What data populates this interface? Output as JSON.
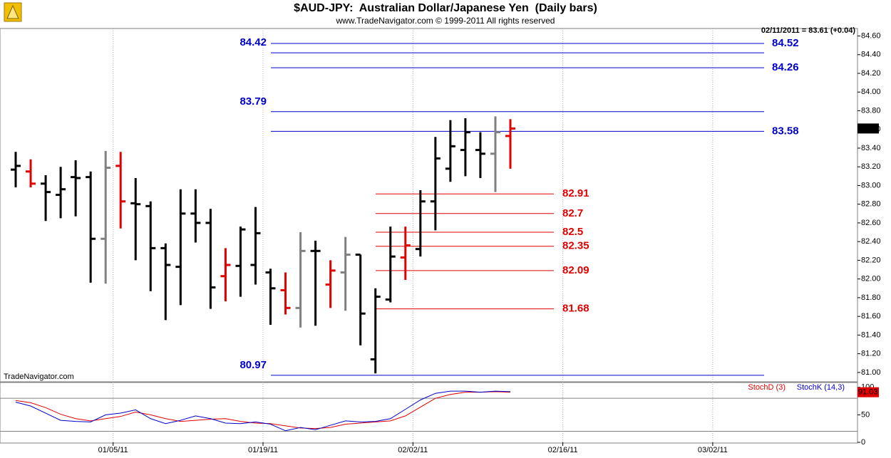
{
  "chart_data": [
    {
      "type": "ohlc",
      "title": "$AUD-JPY:  Australian Dollar/Japanese Yen  (Daily bars)",
      "subtitle": "www.TradeNavigator.com © 1999-2011 All rights reserved",
      "header_note": "02/11/2011 = 83.61 (+0.04)",
      "watermark": "TradeNavigator.com",
      "categories": [
        null,
        null,
        null,
        null,
        null,
        null,
        null,
        "01/05/11",
        null,
        null,
        null,
        null,
        null,
        null,
        null,
        null,
        null,
        "01/19/11",
        null,
        null,
        null,
        null,
        null,
        null,
        null,
        null,
        null,
        "02/02/11",
        null,
        null,
        null,
        null,
        null,
        null,
        null,
        null,
        null,
        "02/16/11",
        null,
        null,
        null,
        null,
        null,
        null,
        null,
        null,
        null,
        "03/02/11",
        null,
        null,
        null,
        null,
        null,
        null,
        null,
        null,
        null
      ],
      "open": [
        83.17,
        83.15,
        83.02,
        82.9,
        83.09,
        83.09,
        82.43,
        83.21,
        82.81,
        82.78,
        82.33,
        82.13,
        82.7,
        82.6,
        82.03,
        82.14,
        82.15,
        82.07,
        81.88,
        81.69,
        82.3,
        81.94,
        82.07,
        82.26,
        81.14,
        81.78,
        82.23,
        82.32,
        82.83,
        83.18,
        83.38,
        83.38,
        83.34,
        83.53,
        null,
        null,
        null,
        null,
        null,
        null,
        null,
        null,
        null,
        null,
        null,
        null,
        null,
        null,
        null,
        null,
        null,
        null,
        null,
        null,
        null,
        null,
        null
      ],
      "high": [
        83.36,
        83.28,
        83.11,
        83.2,
        83.27,
        83.15,
        83.37,
        83.36,
        83.08,
        82.83,
        82.38,
        82.96,
        82.96,
        82.75,
        82.33,
        82.56,
        82.77,
        82.11,
        82.07,
        82.5,
        82.41,
        82.2,
        82.45,
        82.26,
        81.9,
        82.56,
        82.56,
        82.95,
        83.52,
        83.7,
        83.72,
        83.57,
        83.74,
        83.71,
        null,
        null,
        null,
        null,
        null,
        null,
        null,
        null,
        null,
        null,
        null,
        null,
        null,
        null,
        null,
        null,
        null,
        null,
        null,
        null,
        null,
        null,
        null
      ],
      "low": [
        82.98,
        82.98,
        82.62,
        82.65,
        82.67,
        81.96,
        81.95,
        82.54,
        82.2,
        81.87,
        81.56,
        81.72,
        82.39,
        81.68,
        81.76,
        81.81,
        81.94,
        81.51,
        81.62,
        81.48,
        81.5,
        81.69,
        81.66,
        81.29,
        80.99,
        81.75,
        81.99,
        82.24,
        82.52,
        83.04,
        83.1,
        83.08,
        82.93,
        83.18,
        null,
        null,
        null,
        null,
        null,
        null,
        null,
        null,
        null,
        null,
        null,
        null,
        null,
        null,
        null,
        null,
        null,
        null,
        null,
        null,
        null,
        null,
        null
      ],
      "close": [
        83.21,
        83.02,
        82.93,
        82.96,
        83.08,
        82.43,
        83.19,
        82.83,
        82.8,
        82.33,
        82.15,
        82.7,
        82.6,
        81.91,
        82.15,
        82.53,
        82.49,
        81.9,
        81.69,
        82.3,
        82.3,
        82.09,
        82.26,
        81.63,
        81.81,
        82.24,
        82.36,
        82.83,
        83.29,
        83.42,
        83.57,
        83.34,
        83.57,
        83.61,
        null,
        null,
        null,
        null,
        null,
        null,
        null,
        null,
        null,
        null,
        null,
        null,
        null,
        null,
        null,
        null,
        null,
        null,
        null,
        null,
        null,
        null,
        null
      ],
      "bar_colors": [
        "#000000",
        "#e00000",
        "#000000",
        "#000000",
        "#000000",
        "#000000",
        "#808080",
        "#e00000",
        "#000000",
        "#000000",
        "#000000",
        "#000000",
        "#000000",
        "#000000",
        "#e00000",
        "#000000",
        "#000000",
        "#000000",
        "#e00000",
        "#808080",
        "#000000",
        "#e00000",
        "#808080",
        "#000000",
        "#000000",
        "#000000",
        "#e00000",
        "#000000",
        "#000000",
        "#000000",
        "#000000",
        "#000000",
        "#808080",
        "#e00000",
        null,
        null,
        null,
        null,
        null,
        null,
        null,
        null,
        null,
        null,
        null,
        null,
        null,
        null,
        null,
        null,
        null,
        null,
        null,
        null,
        null,
        null,
        null
      ],
      "levels": [
        {
          "value": 84.52,
          "color": "#0000cc",
          "side": "right"
        },
        {
          "value": 84.42,
          "color": "#0000cc",
          "side": "left"
        },
        {
          "value": 84.26,
          "color": "#0000cc",
          "side": "right"
        },
        {
          "value": 83.79,
          "color": "#0000cc",
          "side": "left"
        },
        {
          "value": 83.58,
          "color": "#0000cc",
          "side": "right"
        },
        {
          "value": 80.97,
          "color": "#0000cc",
          "side": "left"
        },
        {
          "value": 82.91,
          "color": "#e00000",
          "side": "mid"
        },
        {
          "value": 82.7,
          "color": "#e00000",
          "side": "mid"
        },
        {
          "value": 82.5,
          "color": "#e00000",
          "side": "mid"
        },
        {
          "value": 82.35,
          "color": "#e00000",
          "side": "mid"
        },
        {
          "value": 82.09,
          "color": "#e00000",
          "side": "mid"
        },
        {
          "value": 81.68,
          "color": "#e00000",
          "side": "mid"
        }
      ],
      "ylim": [
        80.9,
        84.68
      ],
      "yticks": [
        {
          "value": 81,
          "label": "81.00"
        },
        {
          "value": 81.2,
          "label": "81.20"
        },
        {
          "value": 81.4,
          "label": "81.40"
        },
        {
          "value": 81.6,
          "label": "81.60"
        },
        {
          "value": 81.8,
          "label": "81.80"
        },
        {
          "value": 82,
          "label": "82.00"
        },
        {
          "value": 82.2,
          "label": "82.20"
        },
        {
          "value": 82.4,
          "label": "82.40"
        },
        {
          "value": 82.6,
          "label": "82.60"
        },
        {
          "value": 82.8,
          "label": "82.80"
        },
        {
          "value": 83,
          "label": "83.00"
        },
        {
          "value": 83.2,
          "label": "83.20"
        },
        {
          "value": 83.4,
          "label": "83.40"
        },
        {
          "value": 83.6,
          "label": "83.60"
        },
        {
          "value": 83.8,
          "label": "83.80"
        },
        {
          "value": 84,
          "label": "84.00"
        },
        {
          "value": 84.2,
          "label": "84.20"
        },
        {
          "value": 84.4,
          "label": "84.40"
        },
        {
          "value": 84.6,
          "label": "84.60"
        }
      ]
    },
    {
      "type": "line",
      "series": [
        {
          "name": "StochD (3)",
          "color": "#e00000",
          "last_value": 91.03,
          "values": [
            76,
            72,
            63,
            51,
            43,
            39,
            43,
            47,
            55,
            50,
            43,
            38,
            40,
            42,
            43,
            38,
            35,
            34,
            30,
            26,
            25,
            27,
            33,
            35,
            37,
            39,
            48,
            64,
            80,
            87,
            91,
            91,
            92,
            91.03,
            null,
            null,
            null,
            null,
            null,
            null,
            null,
            null,
            null,
            null,
            null,
            null,
            null,
            null,
            null,
            null,
            null,
            null,
            null,
            null,
            null,
            null,
            null
          ]
        },
        {
          "name": "StochK (14,3)",
          "color": "#0000cc",
          "values": [
            73,
            66,
            53,
            40,
            38,
            37,
            50,
            53,
            59,
            43,
            34,
            40,
            48,
            43,
            35,
            34,
            37,
            33,
            21,
            27,
            23,
            31,
            39,
            37,
            38,
            43,
            60,
            77,
            89,
            93,
            93,
            91,
            93,
            92,
            null,
            null,
            null,
            null,
            null,
            null,
            null,
            null,
            null,
            null,
            null,
            null,
            null,
            null,
            null,
            null,
            null,
            null,
            null,
            null,
            null,
            null,
            null
          ]
        }
      ],
      "levels": [
        80,
        20
      ],
      "ylim": [
        0,
        110
      ],
      "yticks": [
        0,
        50,
        100
      ]
    }
  ]
}
